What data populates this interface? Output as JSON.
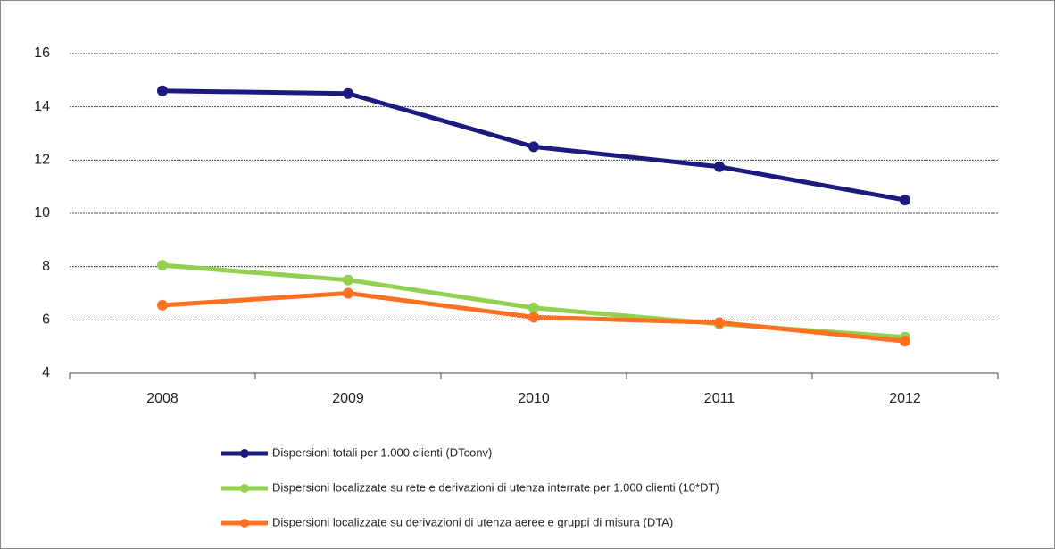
{
  "chart_data": {
    "type": "line",
    "categories": [
      "2008",
      "2009",
      "2010",
      "2011",
      "2012"
    ],
    "series": [
      {
        "name": "Dispersioni totali per 1.000 clienti (DTconv)",
        "color": "#1b1a7e",
        "values": [
          14.6,
          14.5,
          12.5,
          11.75,
          10.5
        ]
      },
      {
        "name": "Dispersioni localizzate su rete e derivazioni di utenza interrate per 1.000 clienti (10*DT)",
        "color": "#92d050",
        "values": [
          8.05,
          7.5,
          6.45,
          5.85,
          5.35
        ]
      },
      {
        "name": "Dispersioni localizzate su derivazioni di utenza aeree e gruppi di misura (DTA)",
        "color": "#ff7020",
        "values": [
          6.55,
          7.0,
          6.1,
          5.9,
          5.2
        ]
      }
    ],
    "ylim": [
      4,
      16
    ],
    "yticks": [
      4,
      6,
      8,
      10,
      12,
      14,
      16
    ],
    "grid": true,
    "legend": "bottom"
  }
}
